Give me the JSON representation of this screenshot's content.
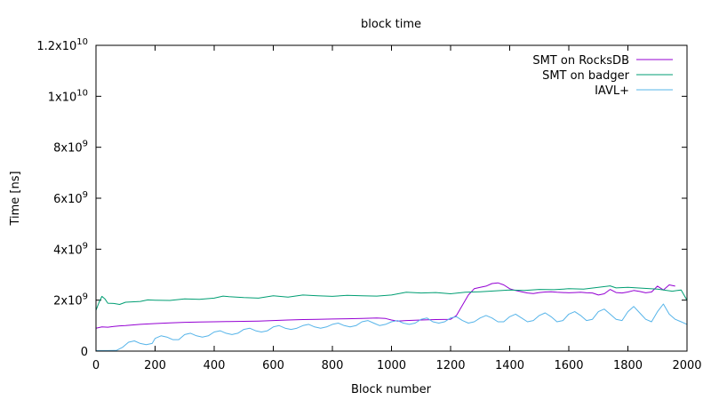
{
  "chart_data": {
    "type": "line",
    "title": "block time",
    "xlabel": "Block number",
    "ylabel": "Time [ns]",
    "xlim": [
      0,
      2000
    ],
    "ylim": [
      0,
      12000000000
    ],
    "x_ticks": [
      0,
      200,
      400,
      600,
      800,
      1000,
      1200,
      1400,
      1600,
      1800,
      2000
    ],
    "y_ticks": [
      {
        "value": 0,
        "base": "0",
        "exp": ""
      },
      {
        "value": 2000000000,
        "base": "2x10",
        "exp": "9"
      },
      {
        "value": 4000000000,
        "base": "4x10",
        "exp": "9"
      },
      {
        "value": 6000000000,
        "base": "6x10",
        "exp": "9"
      },
      {
        "value": 8000000000,
        "base": "8x10",
        "exp": "9"
      },
      {
        "value": 10000000000,
        "base": "1x10",
        "exp": "10"
      },
      {
        "value": 12000000000,
        "base": "1.2x10",
        "exp": "10"
      }
    ],
    "grid": false,
    "legend_position": "top-right",
    "series": [
      {
        "name": "SMT on RocksDB",
        "color": "#9400d3",
        "points": [
          [
            0,
            900000000
          ],
          [
            20,
            950000000
          ],
          [
            40,
            940000000
          ],
          [
            60,
            970000000
          ],
          [
            80,
            990000000
          ],
          [
            100,
            1000000000
          ],
          [
            150,
            1050000000
          ],
          [
            200,
            1080000000
          ],
          [
            250,
            1110000000
          ],
          [
            300,
            1130000000
          ],
          [
            350,
            1140000000
          ],
          [
            400,
            1150000000
          ],
          [
            450,
            1160000000
          ],
          [
            500,
            1170000000
          ],
          [
            550,
            1180000000
          ],
          [
            600,
            1200000000
          ],
          [
            650,
            1220000000
          ],
          [
            700,
            1240000000
          ],
          [
            750,
            1250000000
          ],
          [
            800,
            1260000000
          ],
          [
            850,
            1270000000
          ],
          [
            900,
            1280000000
          ],
          [
            950,
            1300000000
          ],
          [
            980,
            1280000000
          ],
          [
            1000,
            1220000000
          ],
          [
            1020,
            1180000000
          ],
          [
            1050,
            1200000000
          ],
          [
            1100,
            1220000000
          ],
          [
            1150,
            1240000000
          ],
          [
            1200,
            1250000000
          ],
          [
            1220,
            1400000000
          ],
          [
            1240,
            1800000000
          ],
          [
            1260,
            2200000000
          ],
          [
            1280,
            2450000000
          ],
          [
            1300,
            2500000000
          ],
          [
            1320,
            2550000000
          ],
          [
            1340,
            2650000000
          ],
          [
            1360,
            2680000000
          ],
          [
            1380,
            2600000000
          ],
          [
            1400,
            2450000000
          ],
          [
            1420,
            2380000000
          ],
          [
            1440,
            2330000000
          ],
          [
            1460,
            2280000000
          ],
          [
            1480,
            2260000000
          ],
          [
            1500,
            2300000000
          ],
          [
            1520,
            2320000000
          ],
          [
            1540,
            2330000000
          ],
          [
            1560,
            2310000000
          ],
          [
            1580,
            2300000000
          ],
          [
            1600,
            2290000000
          ],
          [
            1620,
            2300000000
          ],
          [
            1640,
            2310000000
          ],
          [
            1660,
            2290000000
          ],
          [
            1680,
            2280000000
          ],
          [
            1700,
            2200000000
          ],
          [
            1720,
            2250000000
          ],
          [
            1740,
            2420000000
          ],
          [
            1760,
            2300000000
          ],
          [
            1780,
            2280000000
          ],
          [
            1800,
            2320000000
          ],
          [
            1820,
            2380000000
          ],
          [
            1840,
            2340000000
          ],
          [
            1860,
            2290000000
          ],
          [
            1880,
            2320000000
          ],
          [
            1900,
            2550000000
          ],
          [
            1920,
            2400000000
          ],
          [
            1940,
            2600000000
          ],
          [
            1960,
            2550000000
          ]
        ]
      },
      {
        "name": "SMT on badger",
        "color": "#009e73",
        "points": [
          [
            0,
            1600000000
          ],
          [
            10,
            1900000000
          ],
          [
            20,
            2150000000
          ],
          [
            30,
            2050000000
          ],
          [
            40,
            1880000000
          ],
          [
            60,
            1870000000
          ],
          [
            80,
            1830000000
          ],
          [
            100,
            1920000000
          ],
          [
            150,
            1950000000
          ],
          [
            175,
            2010000000
          ],
          [
            200,
            2000000000
          ],
          [
            250,
            1990000000
          ],
          [
            300,
            2050000000
          ],
          [
            350,
            2030000000
          ],
          [
            400,
            2080000000
          ],
          [
            430,
            2160000000
          ],
          [
            450,
            2140000000
          ],
          [
            500,
            2100000000
          ],
          [
            550,
            2080000000
          ],
          [
            600,
            2170000000
          ],
          [
            650,
            2120000000
          ],
          [
            700,
            2200000000
          ],
          [
            750,
            2170000000
          ],
          [
            800,
            2150000000
          ],
          [
            850,
            2190000000
          ],
          [
            900,
            2170000000
          ],
          [
            950,
            2160000000
          ],
          [
            1000,
            2200000000
          ],
          [
            1050,
            2310000000
          ],
          [
            1100,
            2280000000
          ],
          [
            1150,
            2300000000
          ],
          [
            1200,
            2250000000
          ],
          [
            1250,
            2310000000
          ],
          [
            1300,
            2330000000
          ],
          [
            1350,
            2360000000
          ],
          [
            1400,
            2400000000
          ],
          [
            1450,
            2380000000
          ],
          [
            1500,
            2420000000
          ],
          [
            1550,
            2410000000
          ],
          [
            1600,
            2450000000
          ],
          [
            1650,
            2430000000
          ],
          [
            1700,
            2500000000
          ],
          [
            1740,
            2560000000
          ],
          [
            1760,
            2480000000
          ],
          [
            1800,
            2500000000
          ],
          [
            1850,
            2470000000
          ],
          [
            1900,
            2430000000
          ],
          [
            1950,
            2350000000
          ],
          [
            1980,
            2400000000
          ],
          [
            2000,
            2000000000
          ]
        ]
      },
      {
        "name": "IAVL+",
        "color": "#56b4e9",
        "points": [
          [
            0,
            20000000
          ],
          [
            40,
            20000000
          ],
          [
            70,
            30000000
          ],
          [
            90,
            150000000
          ],
          [
            110,
            350000000
          ],
          [
            130,
            400000000
          ],
          [
            150,
            300000000
          ],
          [
            170,
            250000000
          ],
          [
            190,
            300000000
          ],
          [
            200,
            500000000
          ],
          [
            220,
            600000000
          ],
          [
            240,
            550000000
          ],
          [
            260,
            450000000
          ],
          [
            280,
            450000000
          ],
          [
            300,
            650000000
          ],
          [
            320,
            700000000
          ],
          [
            340,
            600000000
          ],
          [
            360,
            550000000
          ],
          [
            380,
            600000000
          ],
          [
            400,
            750000000
          ],
          [
            420,
            800000000
          ],
          [
            440,
            700000000
          ],
          [
            460,
            650000000
          ],
          [
            480,
            700000000
          ],
          [
            500,
            850000000
          ],
          [
            520,
            900000000
          ],
          [
            540,
            800000000
          ],
          [
            560,
            750000000
          ],
          [
            580,
            800000000
          ],
          [
            600,
            950000000
          ],
          [
            620,
            1000000000
          ],
          [
            640,
            900000000
          ],
          [
            660,
            850000000
          ],
          [
            680,
            900000000
          ],
          [
            700,
            1000000000
          ],
          [
            720,
            1050000000
          ],
          [
            740,
            950000000
          ],
          [
            760,
            900000000
          ],
          [
            780,
            950000000
          ],
          [
            800,
            1050000000
          ],
          [
            820,
            1100000000
          ],
          [
            840,
            1000000000
          ],
          [
            860,
            950000000
          ],
          [
            880,
            1000000000
          ],
          [
            900,
            1150000000
          ],
          [
            920,
            1200000000
          ],
          [
            940,
            1100000000
          ],
          [
            960,
            1000000000
          ],
          [
            980,
            1050000000
          ],
          [
            1000,
            1150000000
          ],
          [
            1020,
            1200000000
          ],
          [
            1040,
            1100000000
          ],
          [
            1060,
            1050000000
          ],
          [
            1080,
            1100000000
          ],
          [
            1100,
            1250000000
          ],
          [
            1120,
            1300000000
          ],
          [
            1140,
            1150000000
          ],
          [
            1160,
            1100000000
          ],
          [
            1180,
            1150000000
          ],
          [
            1200,
            1300000000
          ],
          [
            1220,
            1350000000
          ],
          [
            1240,
            1200000000
          ],
          [
            1260,
            1100000000
          ],
          [
            1280,
            1150000000
          ],
          [
            1300,
            1300000000
          ],
          [
            1320,
            1400000000
          ],
          [
            1340,
            1300000000
          ],
          [
            1360,
            1150000000
          ],
          [
            1380,
            1150000000
          ],
          [
            1400,
            1350000000
          ],
          [
            1420,
            1450000000
          ],
          [
            1440,
            1300000000
          ],
          [
            1460,
            1150000000
          ],
          [
            1480,
            1200000000
          ],
          [
            1500,
            1400000000
          ],
          [
            1520,
            1500000000
          ],
          [
            1540,
            1350000000
          ],
          [
            1560,
            1150000000
          ],
          [
            1580,
            1200000000
          ],
          [
            1600,
            1450000000
          ],
          [
            1620,
            1550000000
          ],
          [
            1640,
            1400000000
          ],
          [
            1660,
            1200000000
          ],
          [
            1680,
            1250000000
          ],
          [
            1700,
            1550000000
          ],
          [
            1720,
            1650000000
          ],
          [
            1740,
            1450000000
          ],
          [
            1760,
            1250000000
          ],
          [
            1780,
            1200000000
          ],
          [
            1800,
            1550000000
          ],
          [
            1820,
            1750000000
          ],
          [
            1840,
            1500000000
          ],
          [
            1860,
            1250000000
          ],
          [
            1880,
            1150000000
          ],
          [
            1900,
            1550000000
          ],
          [
            1920,
            1850000000
          ],
          [
            1940,
            1450000000
          ],
          [
            1960,
            1250000000
          ],
          [
            1980,
            1150000000
          ],
          [
            2000,
            1050000000
          ]
        ]
      }
    ]
  }
}
